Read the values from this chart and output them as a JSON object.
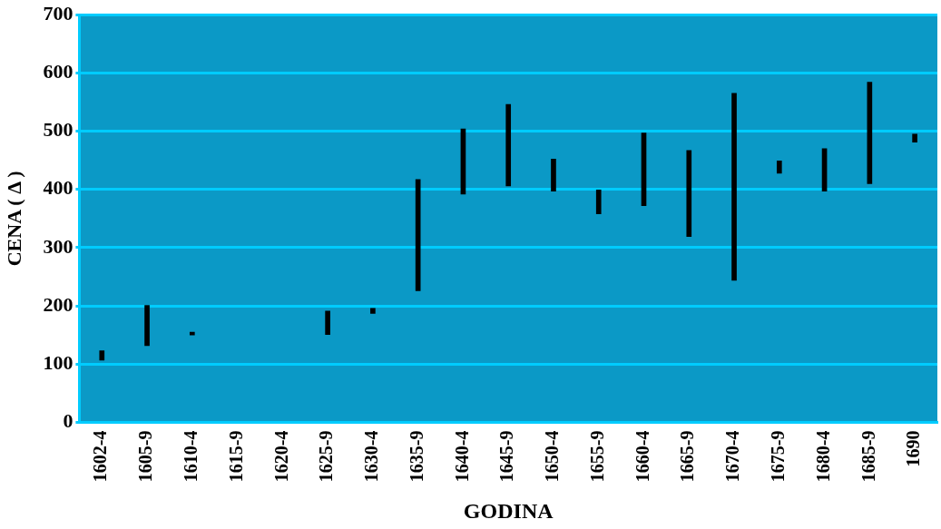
{
  "chart_data": {
    "type": "bar",
    "xlabel": "GODINA",
    "ylabel": "CENA ( Δ )",
    "categories": [
      "1602-4",
      "1605-9",
      "1610-4",
      "1615-9",
      "1620-4",
      "1625-9",
      "1630-4",
      "1635-9",
      "1640-4",
      "1645-9",
      "1650-4",
      "1655-9",
      "1660-4",
      "1665-9",
      "1670-4",
      "1675-9",
      "1680-4",
      "1685-9",
      "1690"
    ],
    "base": [
      107,
      132,
      150,
      null,
      null,
      151,
      187,
      226,
      392,
      406,
      397,
      358,
      372,
      319,
      244,
      428,
      397,
      410,
      481
    ],
    "values": [
      16,
      69,
      5,
      null,
      null,
      40,
      9,
      191,
      112,
      140,
      55,
      41,
      125,
      148,
      321,
      21,
      73,
      174,
      14
    ],
    "color": "#000000",
    "ylim": [
      0,
      700
    ],
    "yticks": [
      0,
      100,
      200,
      300,
      400,
      500,
      600,
      700
    ],
    "grid": "y"
  }
}
